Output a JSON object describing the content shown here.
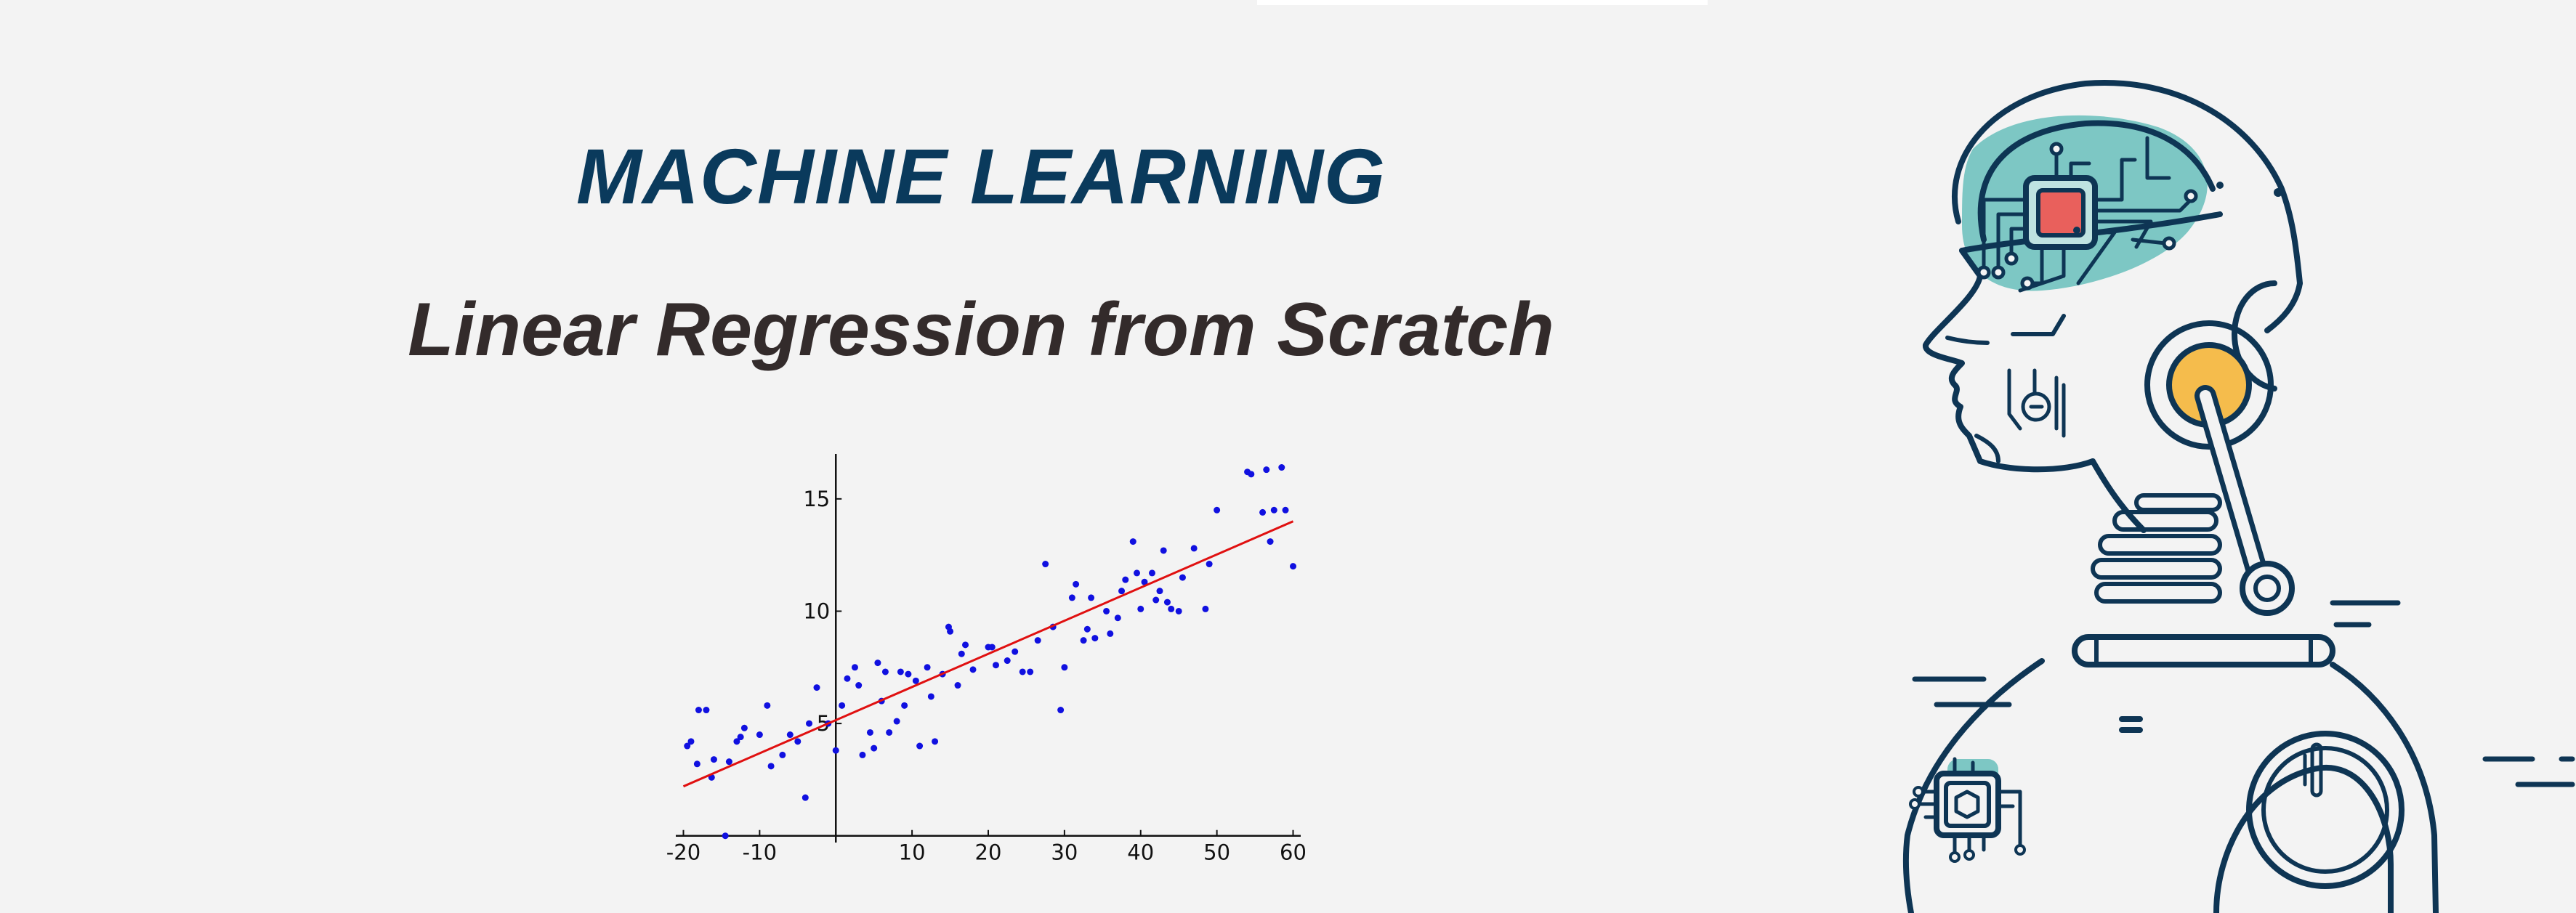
{
  "header": {
    "title": "MACHINE LEARNING",
    "subtitle": "Linear Regression from Scratch"
  },
  "colors": {
    "title": "#0a3a5c",
    "subtitle": "#332b2b",
    "points": "#1010e0",
    "fit_line": "#e01010",
    "robot_stroke": "#0e3554",
    "brain_fill": "#7dc7c4",
    "chip_fill": "#e9605c",
    "ear_fill": "#f5bc4c"
  },
  "illustration": {
    "icon": "robot-head-icon"
  },
  "chart_data": {
    "type": "scatter",
    "xlim": [
      -21,
      61
    ],
    "ylim": [
      -0.3,
      17
    ],
    "x_ticks": [
      -20,
      -10,
      10,
      20,
      30,
      40,
      50,
      60
    ],
    "x_tick_labels": [
      "-20",
      "-10",
      "10",
      "20",
      "30",
      "40",
      "50",
      "60"
    ],
    "y_ticks": [
      5,
      10,
      15
    ],
    "y_tick_labels": [
      "5",
      "10",
      "15"
    ],
    "grid": false,
    "fit_line": {
      "x": [
        -20,
        60
      ],
      "y": [
        2.2,
        14.0
      ]
    },
    "points": [
      [
        -19.5,
        4.0
      ],
      [
        -19,
        4.2
      ],
      [
        -18,
        5.6
      ],
      [
        -17,
        5.6
      ],
      [
        -18.2,
        3.2
      ],
      [
        -16.3,
        2.6
      ],
      [
        -16,
        3.4
      ],
      [
        -14.5,
        0.0
      ],
      [
        -14,
        3.3
      ],
      [
        -13,
        4.2
      ],
      [
        -12.5,
        4.4
      ],
      [
        -12,
        4.8
      ],
      [
        -10,
        4.5
      ],
      [
        -9,
        5.8
      ],
      [
        -8.5,
        3.1
      ],
      [
        -7,
        3.6
      ],
      [
        -6,
        4.5
      ],
      [
        -5,
        4.2
      ],
      [
        -4,
        1.7
      ],
      [
        -3.5,
        5.0
      ],
      [
        -2.5,
        6.6
      ],
      [
        -1,
        5.0
      ],
      [
        0,
        3.8
      ],
      [
        0.8,
        5.8
      ],
      [
        1.5,
        7.0
      ],
      [
        2.5,
        7.5
      ],
      [
        3,
        6.7
      ],
      [
        3.5,
        3.6
      ],
      [
        4.5,
        4.6
      ],
      [
        5,
        3.9
      ],
      [
        5.5,
        7.7
      ],
      [
        6,
        6.0
      ],
      [
        6.5,
        7.3
      ],
      [
        7,
        4.6
      ],
      [
        8,
        5.1
      ],
      [
        8.5,
        7.3
      ],
      [
        9,
        5.8
      ],
      [
        9.5,
        7.2
      ],
      [
        10.5,
        6.9
      ],
      [
        11,
        4.0
      ],
      [
        12,
        7.5
      ],
      [
        12.5,
        6.2
      ],
      [
        13,
        4.2
      ],
      [
        14,
        7.2
      ],
      [
        14.8,
        9.3
      ],
      [
        15,
        9.1
      ],
      [
        16,
        6.7
      ],
      [
        16.5,
        8.1
      ],
      [
        17,
        8.5
      ],
      [
        18,
        7.4
      ],
      [
        20,
        8.4
      ],
      [
        20.5,
        8.4
      ],
      [
        21,
        7.6
      ],
      [
        22.5,
        7.8
      ],
      [
        23.5,
        8.2
      ],
      [
        24.5,
        7.3
      ],
      [
        25.5,
        7.3
      ],
      [
        26.5,
        8.7
      ],
      [
        27.5,
        12.1
      ],
      [
        28.5,
        9.3
      ],
      [
        29.5,
        5.6
      ],
      [
        30,
        7.5
      ],
      [
        31,
        10.6
      ],
      [
        31.5,
        11.2
      ],
      [
        32.5,
        8.7
      ],
      [
        33,
        9.2
      ],
      [
        33.5,
        10.6
      ],
      [
        34,
        8.8
      ],
      [
        35.5,
        10.0
      ],
      [
        36,
        9.0
      ],
      [
        37,
        9.7
      ],
      [
        37.5,
        10.9
      ],
      [
        38,
        11.4
      ],
      [
        39,
        13.1
      ],
      [
        39.5,
        11.7
      ],
      [
        40,
        10.1
      ],
      [
        40.5,
        11.3
      ],
      [
        41.5,
        11.7
      ],
      [
        42,
        10.5
      ],
      [
        42.5,
        10.9
      ],
      [
        43,
        12.7
      ],
      [
        43.5,
        10.4
      ],
      [
        44,
        10.1
      ],
      [
        45,
        10.0
      ],
      [
        45.5,
        11.5
      ],
      [
        47,
        12.8
      ],
      [
        48.5,
        10.1
      ],
      [
        49,
        12.1
      ],
      [
        50,
        14.5
      ],
      [
        54,
        16.2
      ],
      [
        54.5,
        16.1
      ],
      [
        56,
        14.4
      ],
      [
        56.5,
        16.3
      ],
      [
        57,
        13.1
      ],
      [
        57.5,
        14.5
      ],
      [
        58.5,
        16.4
      ],
      [
        59,
        14.5
      ],
      [
        60,
        12.0
      ]
    ]
  }
}
